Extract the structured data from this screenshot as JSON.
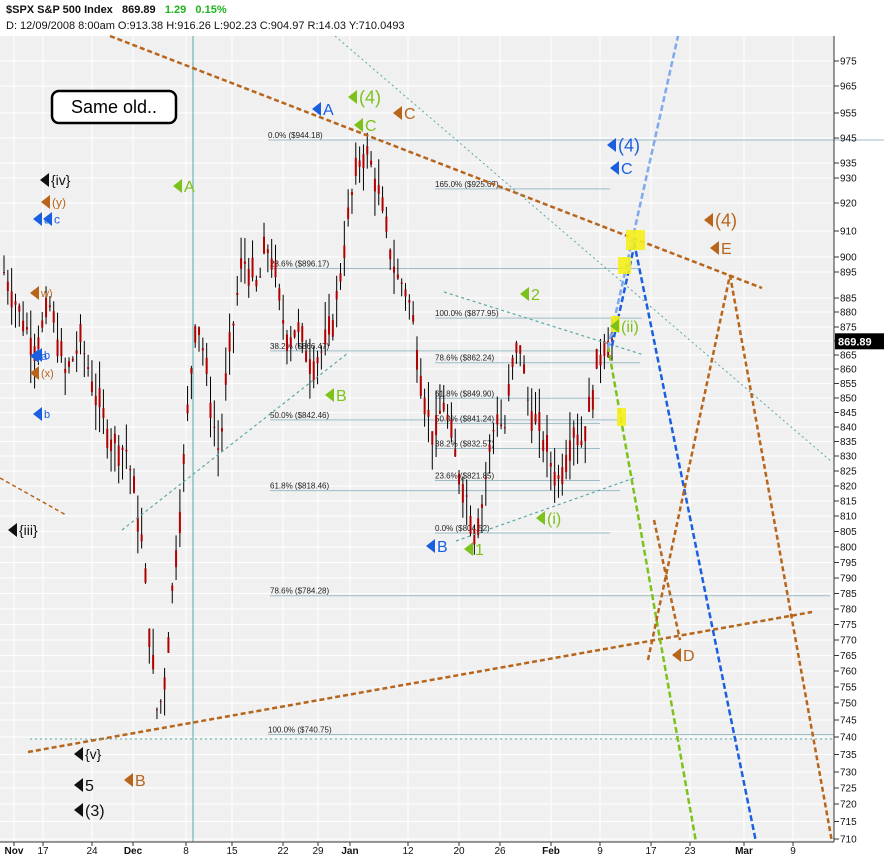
{
  "header": {
    "symbol": "$SPX S&P 500 Index",
    "last": "869.89",
    "change": "1.29",
    "change_pct": "0.15%",
    "line2": "D:  12/09/2008    8:00am  O:913.38  H:916.26  L:902.23  C:904.97  R:14.03  Y:710.0493"
  },
  "note": "Same old..",
  "colors": {
    "background": "#f0f0f0",
    "grid": "#ffffff",
    "candle_body": "#b00000",
    "wick": "#000000",
    "orange": "#b8651c",
    "blue": "#1a5fe0",
    "light_blue": "#7fa9ef",
    "green": "#7cc21a",
    "teal": "#5aa8a8",
    "black": "#111111",
    "highlight": "#f5f01a"
  },
  "chart_data": {
    "type": "candlestick",
    "title": "$SPX S&P 500 Index",
    "last_price": "869.89",
    "ylim": [
      709,
      982
    ],
    "y_ticks": [
      975,
      965,
      955,
      945,
      935,
      930,
      920,
      910,
      900,
      895,
      885,
      880,
      875,
      870,
      865,
      860,
      855,
      850,
      845,
      840,
      835,
      830,
      825,
      820,
      815,
      810,
      805,
      800,
      795,
      790,
      785,
      780,
      775,
      770,
      765,
      760,
      755,
      750,
      745,
      740,
      735,
      730,
      725,
      720,
      715,
      710
    ],
    "x_ticks": [
      "Nov",
      "17",
      "24",
      "Dec",
      "8",
      "15",
      "22",
      "29",
      "Jan",
      "12",
      "20",
      "26",
      "Feb",
      "9",
      "17",
      "23",
      "Mar",
      "9"
    ],
    "grid": true,
    "close_path": [
      [
        0,
        895
      ],
      [
        2,
        880
      ],
      [
        4,
        868
      ],
      [
        6,
        882
      ],
      [
        8,
        858
      ],
      [
        10,
        870
      ],
      [
        12,
        850
      ],
      [
        14,
        835
      ],
      [
        16,
        832
      ],
      [
        18,
        800
      ],
      [
        19,
        770
      ],
      [
        20,
        745
      ],
      [
        21,
        760
      ],
      [
        22,
        790
      ],
      [
        23,
        815
      ],
      [
        24,
        850
      ],
      [
        25,
        880
      ],
      [
        26,
        865
      ],
      [
        27,
        845
      ],
      [
        28,
        830
      ],
      [
        29,
        860
      ],
      [
        30,
        880
      ],
      [
        31,
        900
      ],
      [
        32,
        895
      ],
      [
        33,
        888
      ],
      [
        34,
        905
      ],
      [
        35,
        898
      ],
      [
        36,
        880
      ],
      [
        37,
        870
      ],
      [
        38,
        875
      ],
      [
        39,
        868
      ],
      [
        40,
        862
      ],
      [
        41,
        865
      ],
      [
        42,
        870
      ],
      [
        43,
        880
      ],
      [
        44,
        900
      ],
      [
        45,
        920
      ],
      [
        46,
        935
      ],
      [
        47,
        940
      ],
      [
        48,
        932
      ],
      [
        49,
        920
      ],
      [
        50,
        905
      ],
      [
        51,
        893
      ],
      [
        52,
        890
      ],
      [
        53,
        880
      ],
      [
        54,
        860
      ],
      [
        55,
        845
      ],
      [
        56,
        835
      ],
      [
        57,
        850
      ],
      [
        58,
        838
      ],
      [
        59,
        825
      ],
      [
        60,
        818
      ],
      [
        61,
        805
      ],
      [
        62,
        812
      ],
      [
        63,
        830
      ],
      [
        64,
        845
      ],
      [
        65,
        838
      ],
      [
        66,
        860
      ],
      [
        67,
        870
      ],
      [
        68,
        850
      ],
      [
        69,
        842
      ],
      [
        70,
        836
      ],
      [
        71,
        828
      ],
      [
        72,
        822
      ],
      [
        73,
        830
      ],
      [
        74,
        840
      ],
      [
        75,
        835
      ],
      [
        76,
        845
      ],
      [
        77,
        860
      ],
      [
        78,
        870
      ],
      [
        79,
        869.89
      ]
    ],
    "fib_levels": [
      {
        "pct": "0.0%",
        "price": "($944.18)",
        "value": 944.18
      },
      {
        "pct": "165.0%",
        "price": "($925.67)",
        "value": 925.67
      },
      {
        "pct": "23.6%",
        "price": "($896.17)",
        "value": 896.17
      },
      {
        "pct": "100.0%",
        "price": "($877.95)",
        "value": 877.95
      },
      {
        "pct": "38.2%",
        "price": "($866.47)",
        "value": 866.47
      },
      {
        "pct": "78.6%",
        "price": "($862.24)",
        "value": 862.24
      },
      {
        "pct": "61.8%",
        "price": "($849.90)",
        "value": 849.9
      },
      {
        "pct": "50.0%",
        "price": "($842.46)",
        "value": 842.46
      },
      {
        "pct": "50.0%",
        "price": "($841.24)",
        "value": 841.24
      },
      {
        "pct": "38.2%",
        "price": "($832.57)",
        "value": 832.57
      },
      {
        "pct": "23.6%",
        "price": "($821.85)",
        "value": 821.85
      },
      {
        "pct": "61.8%",
        "price": "($818.46)",
        "value": 818.46
      },
      {
        "pct": "0.0%",
        "price": "($804.52)",
        "value": 804.52
      },
      {
        "pct": "78.6%",
        "price": "($784.28)",
        "value": 784.28
      },
      {
        "pct": "100.0%",
        "price": "($740.75)",
        "value": 740.75
      }
    ],
    "wave_labels": [
      {
        "text": "A",
        "color": "blue"
      },
      {
        "text": "(4)",
        "color": "green"
      },
      {
        "text": "C",
        "color": "green"
      },
      {
        "text": "C",
        "color": "orange"
      },
      {
        "text": "(4)",
        "color": "blue"
      },
      {
        "text": "C",
        "color": "blue"
      },
      {
        "text": "A",
        "color": "green"
      },
      {
        "text": "{iv}",
        "color": "black"
      },
      {
        "text": "(y)",
        "color": "orange"
      },
      {
        "text": "a",
        "color": "blue"
      },
      {
        "text": "c",
        "color": "blue"
      },
      {
        "text": "w)",
        "color": "orange"
      },
      {
        "text": "b",
        "color": "blue"
      },
      {
        "text": "a",
        "color": "blue"
      },
      {
        "text": "(x)",
        "color": "orange"
      },
      {
        "text": "b",
        "color": "blue"
      },
      {
        "text": "{iii}",
        "color": "black"
      },
      {
        "text": "{v}",
        "color": "black"
      },
      {
        "text": "5",
        "color": "black"
      },
      {
        "text": "(3)",
        "color": "black"
      },
      {
        "text": "B",
        "color": "orange"
      },
      {
        "text": "B",
        "color": "green"
      },
      {
        "text": "2",
        "color": "green"
      },
      {
        "text": "(ii)",
        "color": "green"
      },
      {
        "text": "(i)",
        "color": "green"
      },
      {
        "text": "1",
        "color": "green"
      },
      {
        "text": "B",
        "color": "blue"
      },
      {
        "text": "(4)",
        "color": "orange"
      },
      {
        "text": "E",
        "color": "orange"
      },
      {
        "text": "D",
        "color": "orange"
      }
    ]
  }
}
